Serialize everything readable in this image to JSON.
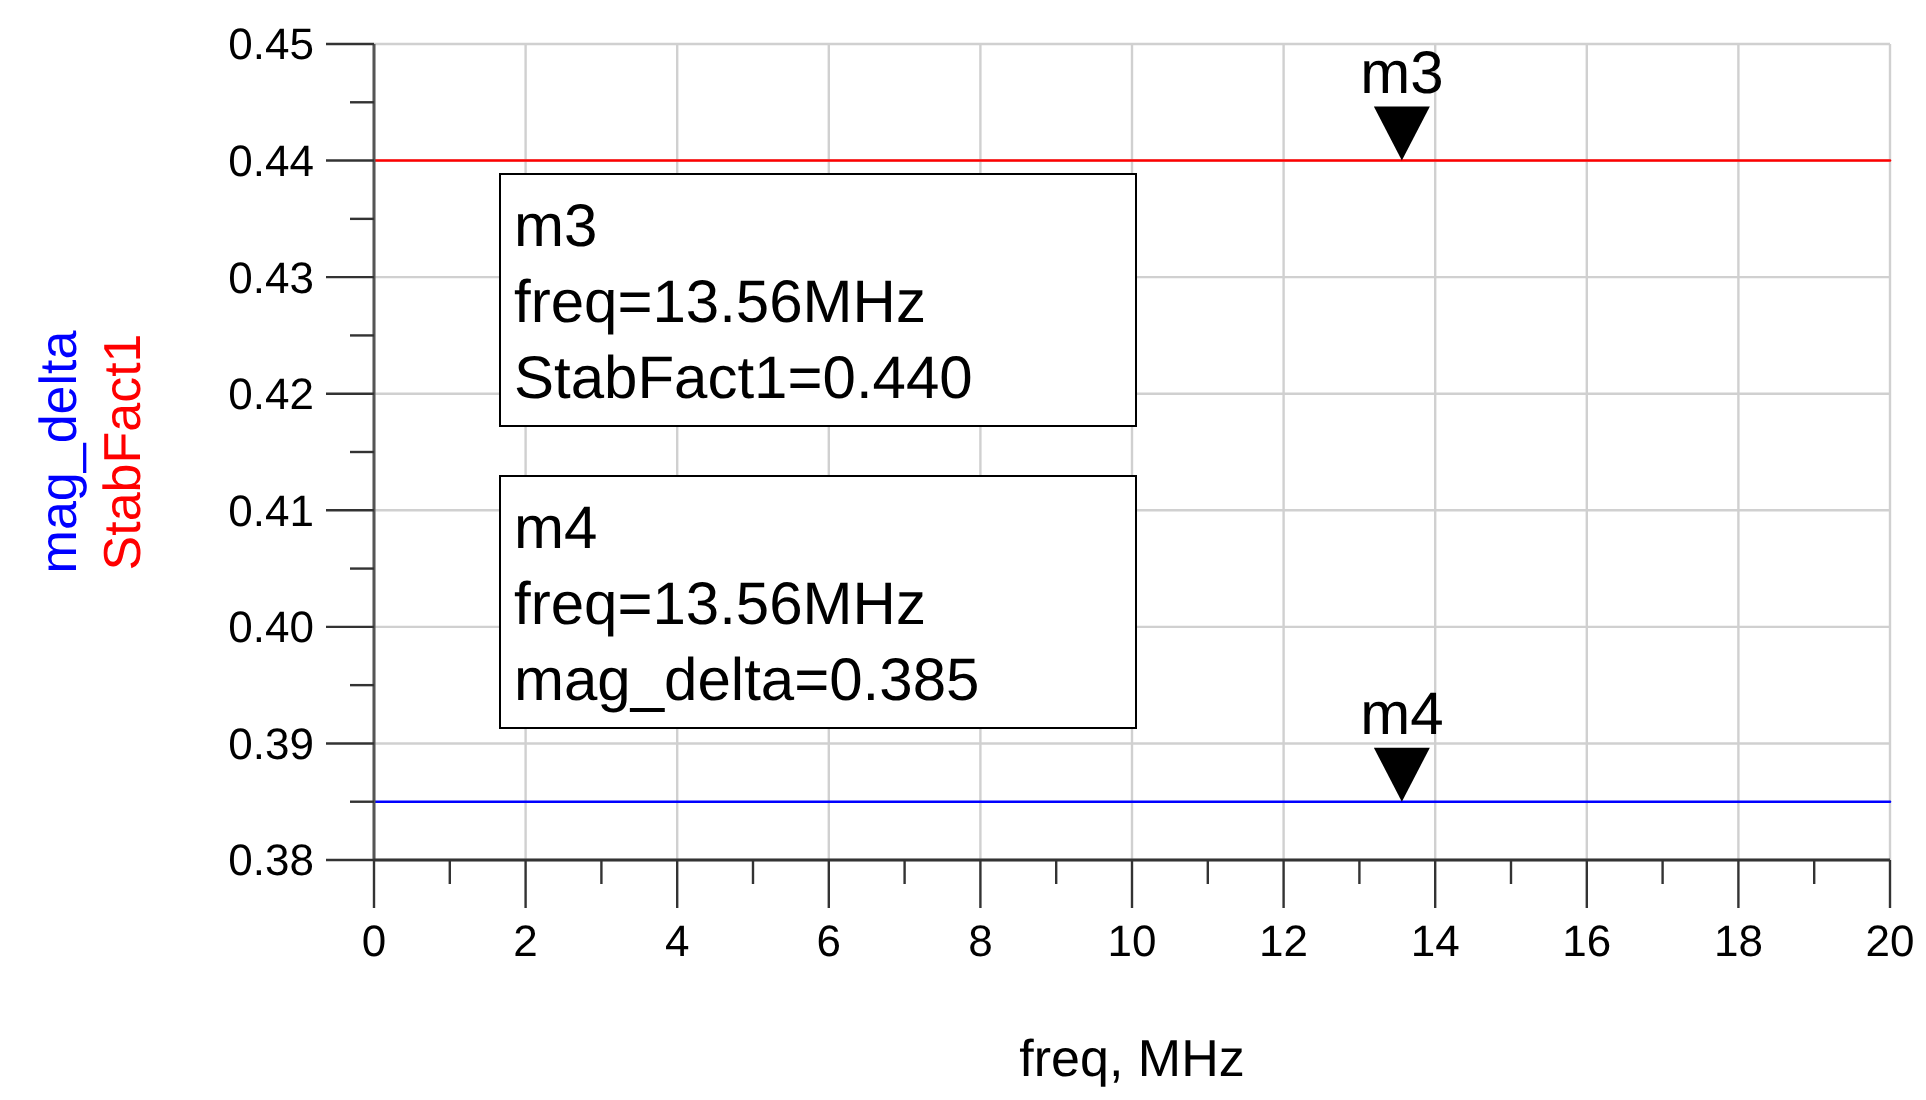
{
  "chart_data": {
    "type": "line",
    "xlabel": "freq, MHz",
    "x": [
      0,
      20
    ],
    "series": [
      {
        "name": "mag_delta",
        "color": "#0000ff",
        "values": [
          0.385,
          0.385
        ]
      },
      {
        "name": "StabFact1",
        "color": "#ff0000",
        "values": [
          0.44,
          0.44
        ]
      }
    ],
    "xlim": [
      0,
      20
    ],
    "xticks": [
      0,
      {
        "value": 1,
        "label": null
      },
      2,
      {
        "value": 3,
        "label": null
      },
      4,
      {
        "value": 5,
        "label": null
      },
      6,
      {
        "value": 7,
        "label": null
      },
      8,
      {
        "value": 9,
        "label": null
      },
      10,
      {
        "value": 11,
        "label": null
      },
      12,
      {
        "value": 13,
        "label": null
      },
      14,
      {
        "value": 15,
        "label": null
      },
      16,
      {
        "value": 17,
        "label": null
      },
      18,
      {
        "value": 19,
        "label": null
      },
      20
    ],
    "ylim": [
      0.38,
      0.45
    ],
    "yticks": [
      {
        "value": 0.38,
        "label": "0.38"
      },
      {
        "value": 0.385,
        "label": null
      },
      {
        "value": 0.39,
        "label": "0.39"
      },
      {
        "value": 0.395,
        "label": null
      },
      {
        "value": 0.4,
        "label": "0.40"
      },
      {
        "value": 0.405,
        "label": null
      },
      {
        "value": 0.41,
        "label": "0.41"
      },
      {
        "value": 0.415,
        "label": null
      },
      {
        "value": 0.42,
        "label": "0.42"
      },
      {
        "value": 0.425,
        "label": null
      },
      {
        "value": 0.43,
        "label": "0.43"
      },
      {
        "value": 0.435,
        "label": null
      },
      {
        "value": 0.44,
        "label": "0.44"
      },
      {
        "value": 0.445,
        "label": null
      },
      {
        "value": 0.45,
        "label": "0.45"
      }
    ],
    "grid": true,
    "legend": "left",
    "marker": "none",
    "line_style": "solid",
    "annotations": [
      {
        "text": "m3",
        "x": 13.56,
        "y": 0.44
      },
      "m3\nfreq=13.56MHz\nStabFact1=0.440",
      "m4\nfreq=13.56MHz\nmag_delta=0.385",
      {
        "text": "m4",
        "x": 13.56,
        "y": 0.385
      }
    ]
  }
}
